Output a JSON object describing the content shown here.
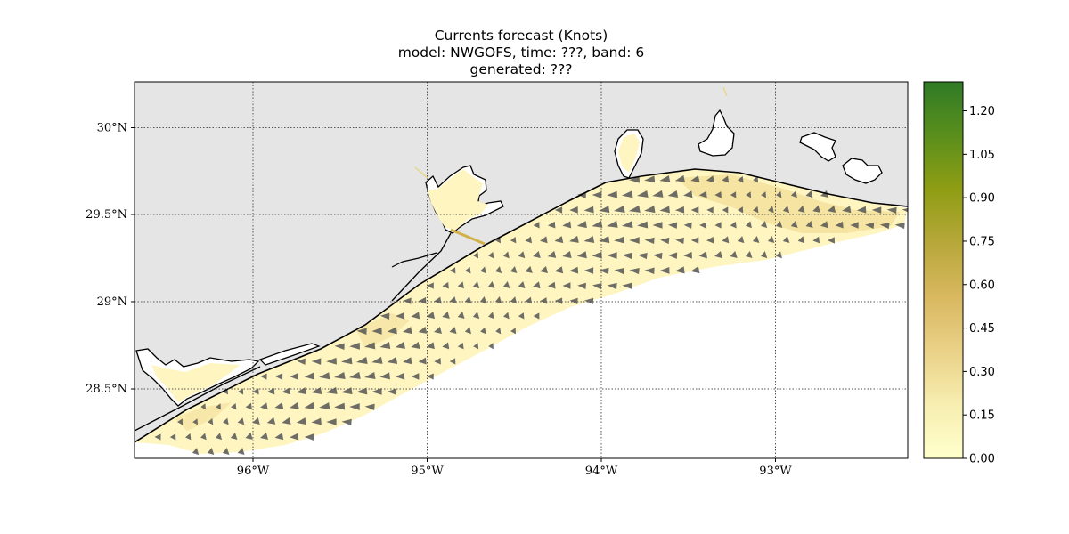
{
  "chart_data": {
    "type": "quiver-map",
    "title_lines": [
      "Currents forecast (Knots)",
      "model: NWGOFS, time: ???, band: 6",
      "generated: ???"
    ],
    "xlim": [
      -96.68,
      -92.22
    ],
    "ylim": [
      28.12,
      30.26
    ],
    "xticks": [
      -96,
      -95,
      -94,
      -93
    ],
    "xtick_labels": [
      "96°W",
      "95°W",
      "94°W",
      "93°W"
    ],
    "yticks": [
      28.5,
      29.0,
      29.5,
      30.0
    ],
    "ytick_labels": [
      "28.5°N",
      "29°N",
      "29.5°N",
      "30°N"
    ],
    "grid": true,
    "colorbar": {
      "min": 0.0,
      "max": 1.3,
      "ticks": [
        0.0,
        0.15,
        0.3,
        0.45,
        0.6,
        0.75,
        0.9,
        1.05,
        1.2
      ],
      "tick_labels": [
        "0.00",
        "0.15",
        "0.30",
        "0.45",
        "0.60",
        "0.75",
        "0.90",
        "1.05",
        "1.20"
      ],
      "colors": [
        "#ffffcc",
        "#f7eeb0",
        "#e9d187",
        "#d9b860",
        "#b7a83a",
        "#8f9d14",
        "#5a8f1c",
        "#2f7a26"
      ]
    },
    "land_color": "#e5e5e5",
    "water_color": "#ffffff",
    "current_fill_color": "#fef5c0",
    "arrow_color": "#555555",
    "typical_speed_knots": 0.2,
    "current_direction": "mostly westward along the coast"
  }
}
